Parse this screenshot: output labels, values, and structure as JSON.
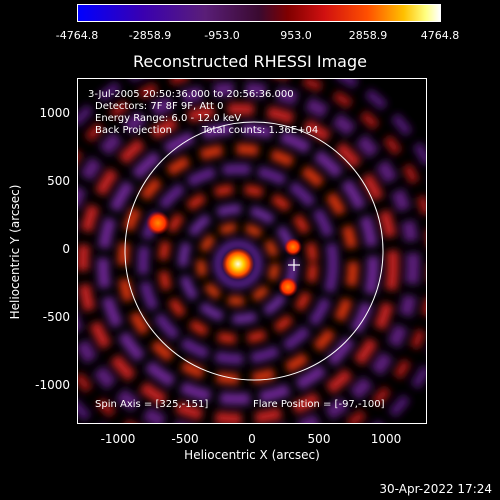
{
  "colorbar": {
    "ticks": [
      "-4764.8",
      "-2858.9",
      "-953.0",
      "953.0",
      "2858.9",
      "4764.8"
    ]
  },
  "title": "Reconstructed RHESSI Image",
  "info": {
    "time": "3-Jul-2005 20:50:36.000 to 20:56:36.000",
    "detectors": "Detectors: 7F 8F 9F, Att 0",
    "energy": "Energy Range: 6.0 - 12.0 keV",
    "method": "Back Projection",
    "counts": "Total counts: 1.36E+04",
    "spin_axis": "Spin Axis = [325,-151]",
    "flare_position": "Flare Position = [-97,-100]"
  },
  "axes": {
    "xlabel": "Heliocentric X (arcsec)",
    "ylabel": "Heliocentric Y (arcsec)",
    "xticks": [
      "-1000",
      "-500",
      "0",
      "500",
      "1000"
    ],
    "yticks": [
      "1000",
      "500",
      "0",
      "-500",
      "-1000"
    ]
  },
  "timestamp": "30-Apr-2022 17:24",
  "colors": {
    "limb_circle": "#ffffff",
    "background": "#000000"
  }
}
